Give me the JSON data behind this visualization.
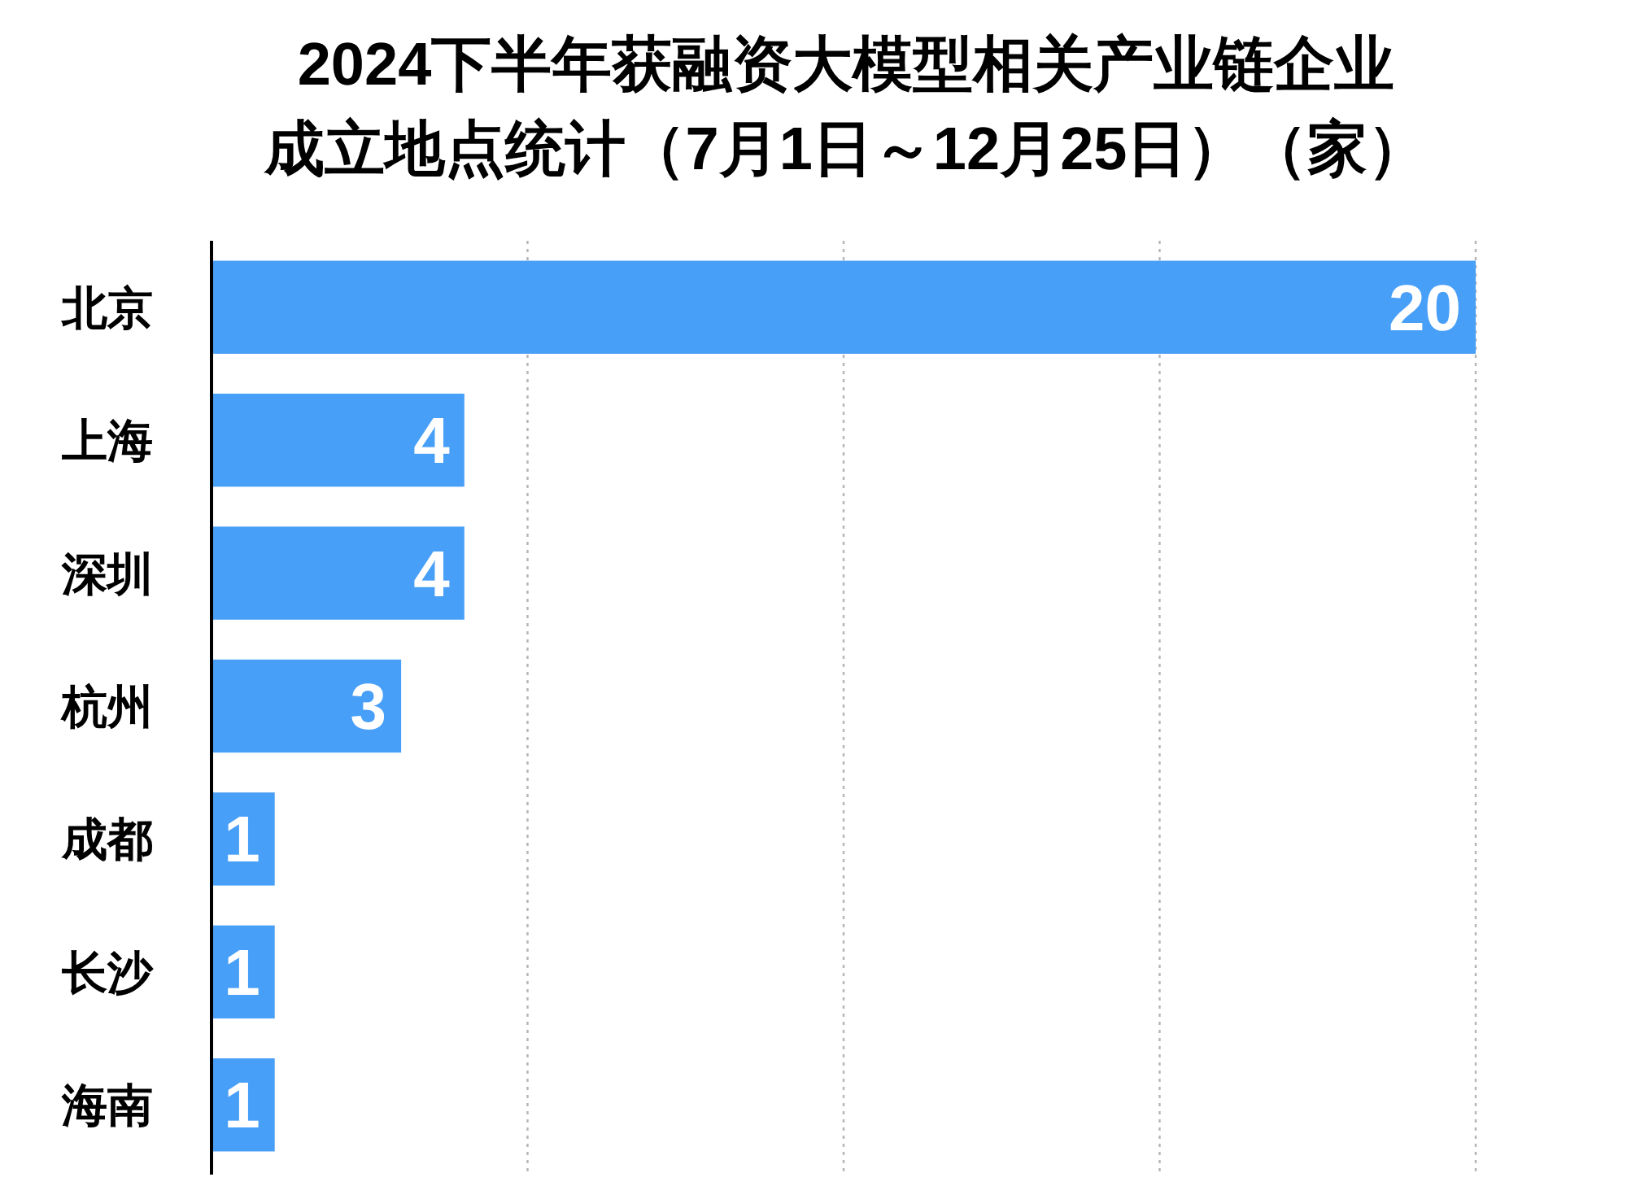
{
  "chart_data": {
    "type": "bar",
    "orientation": "horizontal",
    "title": "2024下半年获融资大模型相关产业链企业成立地点统计（7月1日～12月25日）（家）",
    "categories": [
      "北京",
      "上海",
      "深圳",
      "杭州",
      "成都",
      "长沙",
      "海南"
    ],
    "values": [
      20,
      4,
      4,
      3,
      1,
      1,
      1
    ],
    "color": "#489ff8",
    "xlim": [
      0,
      20
    ],
    "xticks": [
      {
        "value": 5,
        "label": null
      },
      {
        "value": 10,
        "label": null
      },
      {
        "value": 15,
        "label": null
      },
      {
        "value": 20,
        "label": null
      }
    ],
    "grid": "x",
    "data_labels": true,
    "tick_labels": "y"
  }
}
